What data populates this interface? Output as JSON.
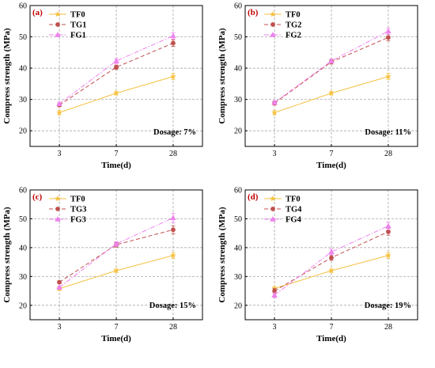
{
  "chart_data": [
    {
      "type": "line",
      "panel_label": "(a)",
      "xlabel": "Time(d)",
      "ylabel": "Compress strength (MPa)",
      "ylim": [
        15,
        60
      ],
      "yticks": [
        20,
        30,
        40,
        50,
        60
      ],
      "categories": [
        "3",
        "7",
        "28"
      ],
      "annotation": "Dosage:  7%",
      "legend_position": "top-left",
      "grid": true,
      "series": [
        {
          "name": "TF0",
          "values": [
            25.8,
            32.0,
            37.3
          ],
          "errors": [
            0.7,
            0.6,
            1.0
          ],
          "color": "#F5C242",
          "dash": "solid",
          "marker": "star"
        },
        {
          "name": "TG1",
          "values": [
            28.2,
            40.3,
            48.0
          ],
          "errors": [
            0.5,
            0.7,
            1.0
          ],
          "color": "#C0504D",
          "dash": "dash",
          "marker": "circle"
        },
        {
          "name": "FG1",
          "values": [
            28.6,
            42.3,
            50.3
          ],
          "errors": [
            0.5,
            0.8,
            1.0
          ],
          "color": "#EE82EE",
          "dash": "dashdot",
          "marker": "triangle"
        }
      ]
    },
    {
      "type": "line",
      "panel_label": "(b)",
      "xlabel": "Time(d)",
      "ylabel": "Compress strength (MPa)",
      "ylim": [
        15,
        60
      ],
      "yticks": [
        20,
        30,
        40,
        50,
        60
      ],
      "categories": [
        "3",
        "7",
        "28"
      ],
      "annotation": "Dosage:  11%",
      "legend_position": "top-left",
      "grid": true,
      "series": [
        {
          "name": "TF0",
          "values": [
            25.8,
            32.0,
            37.3
          ],
          "errors": [
            0.7,
            0.6,
            1.0
          ],
          "color": "#F5C242",
          "dash": "solid",
          "marker": "star"
        },
        {
          "name": "TG2",
          "values": [
            28.8,
            42.0,
            49.8
          ],
          "errors": [
            0.6,
            0.7,
            1.0
          ],
          "color": "#C0504D",
          "dash": "dash",
          "marker": "circle"
        },
        {
          "name": "FG2",
          "values": [
            29.0,
            42.3,
            51.8
          ],
          "errors": [
            0.6,
            0.7,
            1.0
          ],
          "color": "#EE82EE",
          "dash": "dashdot",
          "marker": "triangle"
        }
      ]
    },
    {
      "type": "line",
      "panel_label": "(c)",
      "xlabel": "Time(d)",
      "ylabel": "Compress strength (MPa)",
      "ylim": [
        15,
        60
      ],
      "yticks": [
        20,
        30,
        40,
        50,
        60
      ],
      "categories": [
        "3",
        "7",
        "28"
      ],
      "annotation": "Dosage:  15%",
      "legend_position": "top-left",
      "grid": true,
      "series": [
        {
          "name": "TF0",
          "values": [
            25.8,
            32.0,
            37.3
          ],
          "errors": [
            0.7,
            0.6,
            1.0
          ],
          "color": "#F5C242",
          "dash": "solid",
          "marker": "star"
        },
        {
          "name": "TG3",
          "values": [
            28.0,
            41.0,
            46.2
          ],
          "errors": [
            0.5,
            0.8,
            1.4
          ],
          "color": "#C0504D",
          "dash": "dash",
          "marker": "circle"
        },
        {
          "name": "FG3",
          "values": [
            26.2,
            41.3,
            50.3
          ],
          "errors": [
            0.5,
            0.8,
            1.6
          ],
          "color": "#EE82EE",
          "dash": "dashdot",
          "marker": "triangle"
        }
      ]
    },
    {
      "type": "line",
      "panel_label": "(d)",
      "xlabel": "Time(d)",
      "ylabel": "Compress strength (MPa)",
      "ylim": [
        15,
        60
      ],
      "yticks": [
        20,
        30,
        40,
        50,
        60
      ],
      "categories": [
        "3",
        "7",
        "28"
      ],
      "annotation": "Dosage:  19%",
      "legend_position": "top-left",
      "grid": true,
      "series": [
        {
          "name": "TF0",
          "values": [
            25.8,
            32.0,
            37.3
          ],
          "errors": [
            0.7,
            0.6,
            1.0
          ],
          "color": "#F5C242",
          "dash": "solid",
          "marker": "star"
        },
        {
          "name": "TG4",
          "values": [
            25.0,
            36.5,
            45.5
          ],
          "errors": [
            0.8,
            0.9,
            1.2
          ],
          "color": "#C0504D",
          "dash": "dash",
          "marker": "circle"
        },
        {
          "name": "FG4",
          "values": [
            23.5,
            38.5,
            47.5
          ],
          "errors": [
            0.8,
            1.0,
            1.3
          ],
          "color": "#EE82EE",
          "dash": "dashdot",
          "marker": "triangle"
        }
      ]
    }
  ],
  "style": {
    "panel_label_color": "#C00000",
    "grid_color": "#999999",
    "axis_color": "#000000"
  }
}
